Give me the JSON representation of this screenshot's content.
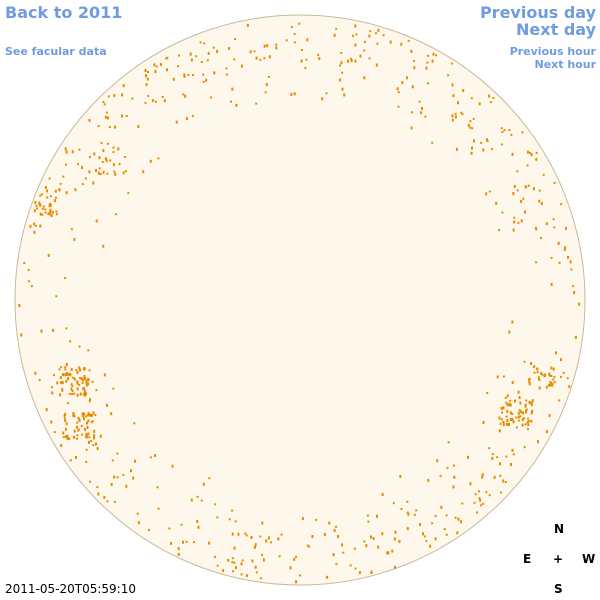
{
  "nav": {
    "back": "Back to 2011",
    "facular": "See facular data",
    "previous_day": "Previous day",
    "next_day": "Next day",
    "previous_hour": "Previous hour",
    "next_hour": "Next hour"
  },
  "timestamp": "2011-05-20T05:59:10",
  "compass": {
    "north": "N",
    "east": "E",
    "center": "+",
    "west": "W",
    "south": "S"
  }
}
